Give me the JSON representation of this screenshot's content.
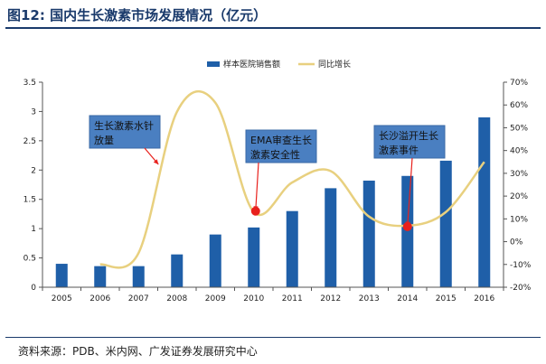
{
  "figure": {
    "label": "图12:",
    "title": "国内生长激素市场发展情况（亿元）",
    "source": "资料来源：PDB、米内网、广发证券发展研究中心"
  },
  "colors": {
    "bar": "#1f5fa8",
    "line": "#e8d07f",
    "marker": "#e8201c",
    "annot_fill": "#4a7fc1",
    "annot_border": "#3a6aa6",
    "rule": "#1a3a6b"
  },
  "chart_data": {
    "type": "bar",
    "categories": [
      "2005",
      "2006",
      "2007",
      "2008",
      "2009",
      "2010",
      "2011",
      "2012",
      "2013",
      "2014",
      "2015",
      "2016"
    ],
    "left_ticks": [
      "0",
      "0.5",
      "1",
      "1.5",
      "2",
      "2.5",
      "3",
      "3.5"
    ],
    "right_ticks": [
      "-20%",
      "-10%",
      "0%",
      "10%",
      "20%",
      "30%",
      "40%",
      "50%",
      "60%",
      "70%"
    ],
    "ylim_left": [
      0,
      3.5
    ],
    "ylim_right": [
      -20,
      70
    ],
    "series": [
      {
        "name": "样本医院销售额",
        "type": "bar",
        "axis": "left",
        "values": [
          0.4,
          0.36,
          0.36,
          0.56,
          0.9,
          1.02,
          1.3,
          1.69,
          1.82,
          1.9,
          2.16,
          2.9
        ]
      },
      {
        "name": "同比增长",
        "type": "line",
        "axis": "right",
        "values": [
          null,
          -10,
          -5,
          57,
          61,
          13,
          26,
          31,
          11,
          7,
          13,
          35
        ]
      }
    ],
    "legend_position": "top-center",
    "grid": false,
    "annotations": [
      {
        "text": [
          "生长激素水针",
          "放量"
        ],
        "at_category": "2007"
      },
      {
        "text": [
          "EMA审查生长",
          "激素安全性"
        ],
        "at_category": "2010"
      },
      {
        "text": [
          "长沙溢开生长",
          "激素事件"
        ],
        "at_category": "2014"
      }
    ]
  }
}
